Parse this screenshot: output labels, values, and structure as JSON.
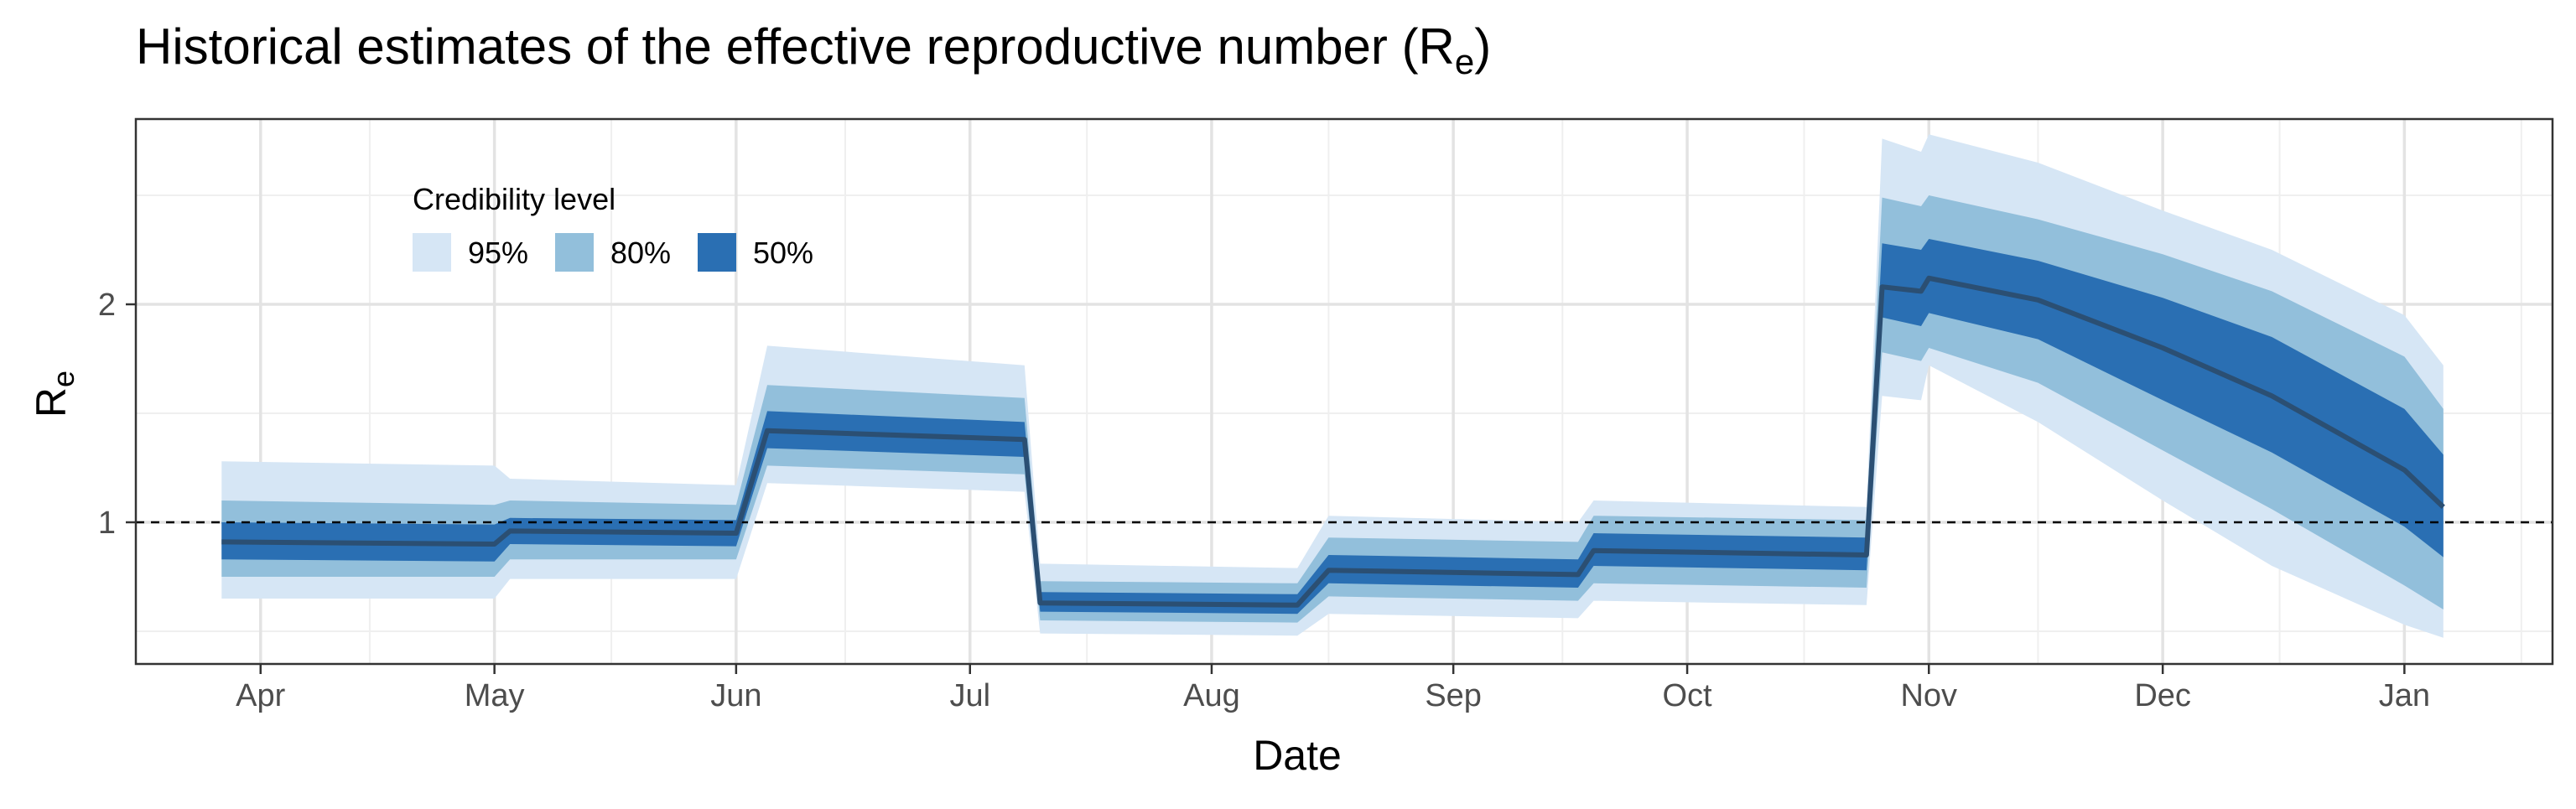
{
  "chart_data": {
    "type": "area",
    "title": "Historical estimates of the effective reproductive number (R",
    "title_subscript": "e",
    "title_suffix": ")",
    "xlabel": "Date",
    "ylabel": "R",
    "ylabel_subscript": "e",
    "x_tick_labels": [
      "Apr",
      "May",
      "Jun",
      "Jul",
      "Aug",
      "Sep",
      "Oct",
      "Nov",
      "Dec",
      "Jan"
    ],
    "y_tick_labels": [
      "1",
      "2"
    ],
    "ylim": [
      0.35,
      2.85
    ],
    "reference_line": 1,
    "grid": true,
    "legend": {
      "title": "Credibility level",
      "placement": "top-left",
      "items": [
        "95%",
        "80%",
        "50%"
      ]
    },
    "colors": {
      "ci95": "#d6e6f5",
      "ci80": "#92bfdb",
      "ci50": "#2a6fb3",
      "median": "#2b4f73",
      "reference": "#000000"
    },
    "x": [
      "2020-03-27",
      "2020-05-01",
      "2020-05-03",
      "2020-06-01",
      "2020-06-05",
      "2020-07-08",
      "2020-07-10",
      "2020-08-12",
      "2020-08-16",
      "2020-09-17",
      "2020-09-19",
      "2020-10-24",
      "2020-10-26",
      "2020-10-31",
      "2020-11-01",
      "2020-11-15",
      "2020-12-01",
      "2020-12-15",
      "2021-01-01",
      "2021-01-06"
    ],
    "series": [
      {
        "name": "50%",
        "kind": "median",
        "values": [
          0.91,
          0.9,
          0.96,
          0.95,
          1.42,
          1.38,
          0.63,
          0.62,
          0.78,
          0.76,
          0.87,
          0.85,
          2.08,
          2.06,
          2.12,
          2.02,
          1.8,
          1.58,
          1.24,
          1.07
        ]
      },
      {
        "name": "50%",
        "kind": "lower",
        "values": [
          0.83,
          0.82,
          0.9,
          0.89,
          1.34,
          1.3,
          0.59,
          0.58,
          0.72,
          0.7,
          0.8,
          0.78,
          1.94,
          1.9,
          1.96,
          1.84,
          1.56,
          1.32,
          0.98,
          0.84
        ]
      },
      {
        "name": "50%",
        "kind": "upper",
        "values": [
          1.0,
          0.99,
          1.02,
          1.01,
          1.51,
          1.46,
          0.68,
          0.67,
          0.85,
          0.83,
          0.95,
          0.93,
          2.28,
          2.25,
          2.3,
          2.2,
          2.03,
          1.85,
          1.52,
          1.31
        ]
      },
      {
        "name": "80%",
        "kind": "lower",
        "values": [
          0.75,
          0.75,
          0.83,
          0.83,
          1.26,
          1.22,
          0.55,
          0.54,
          0.66,
          0.64,
          0.72,
          0.7,
          1.78,
          1.74,
          1.8,
          1.64,
          1.33,
          1.06,
          0.71,
          0.6
        ]
      },
      {
        "name": "80%",
        "kind": "upper",
        "values": [
          1.1,
          1.08,
          1.1,
          1.08,
          1.63,
          1.57,
          0.73,
          0.72,
          0.93,
          0.91,
          1.03,
          1.01,
          2.49,
          2.45,
          2.5,
          2.39,
          2.23,
          2.06,
          1.76,
          1.52
        ]
      },
      {
        "name": "95%",
        "kind": "lower",
        "values": [
          0.65,
          0.65,
          0.74,
          0.74,
          1.18,
          1.14,
          0.49,
          0.48,
          0.58,
          0.56,
          0.64,
          0.62,
          1.58,
          1.56,
          1.72,
          1.46,
          1.1,
          0.8,
          0.53,
          0.47
        ]
      },
      {
        "name": "95%",
        "kind": "upper",
        "values": [
          1.28,
          1.26,
          1.2,
          1.17,
          1.81,
          1.72,
          0.81,
          0.79,
          1.03,
          1.0,
          1.1,
          1.07,
          2.76,
          2.7,
          2.78,
          2.65,
          2.43,
          2.25,
          1.95,
          1.72
        ]
      }
    ]
  }
}
